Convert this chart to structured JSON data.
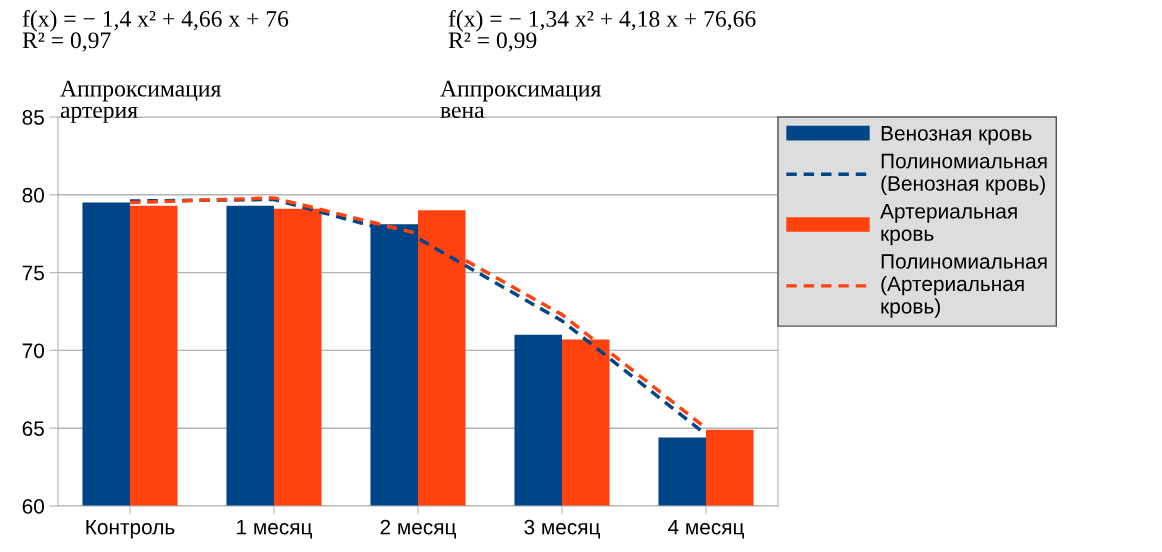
{
  "chart_data": {
    "type": "bar",
    "categories": [
      "Контроль",
      "1 месяц",
      "2 месяц",
      "3 месяц",
      "4 месяц"
    ],
    "series": [
      {
        "name": "Венозная кровь",
        "color": "#004586",
        "values": [
          79.5,
          79.3,
          78.1,
          71.0,
          64.4
        ]
      },
      {
        "name": "Полиномиальная\n(Венозная кровь)",
        "type": "line",
        "line_style": "dashed",
        "color": "#004586",
        "values": [
          79.6,
          79.7,
          77.2,
          71.9,
          64.6
        ]
      },
      {
        "name": "Артериальная\nкровь",
        "color": "#ff420e",
        "values": [
          79.3,
          79.1,
          79.0,
          70.7,
          64.9
        ]
      },
      {
        "name": "Полиномиальная\n(Артериальная\nкровь)",
        "type": "line",
        "line_style": "dashed",
        "color": "#ff420e",
        "values": [
          79.5,
          79.8,
          77.5,
          72.3,
          65.0
        ]
      }
    ],
    "ylim": [
      60,
      85
    ],
    "yticks": [
      60,
      65,
      70,
      75,
      80,
      85
    ],
    "grid": "y",
    "legend": "right",
    "annotations": [
      "f(x) = − 1,4 x² + 4,66 x + 76\nR² = 0,97",
      "f(x) = − 1,34 x² + 4,18 x + 76,66\nR² = 0,99",
      "Аппроксимация\nартерия",
      "Аппроксимация\nвена"
    ]
  }
}
